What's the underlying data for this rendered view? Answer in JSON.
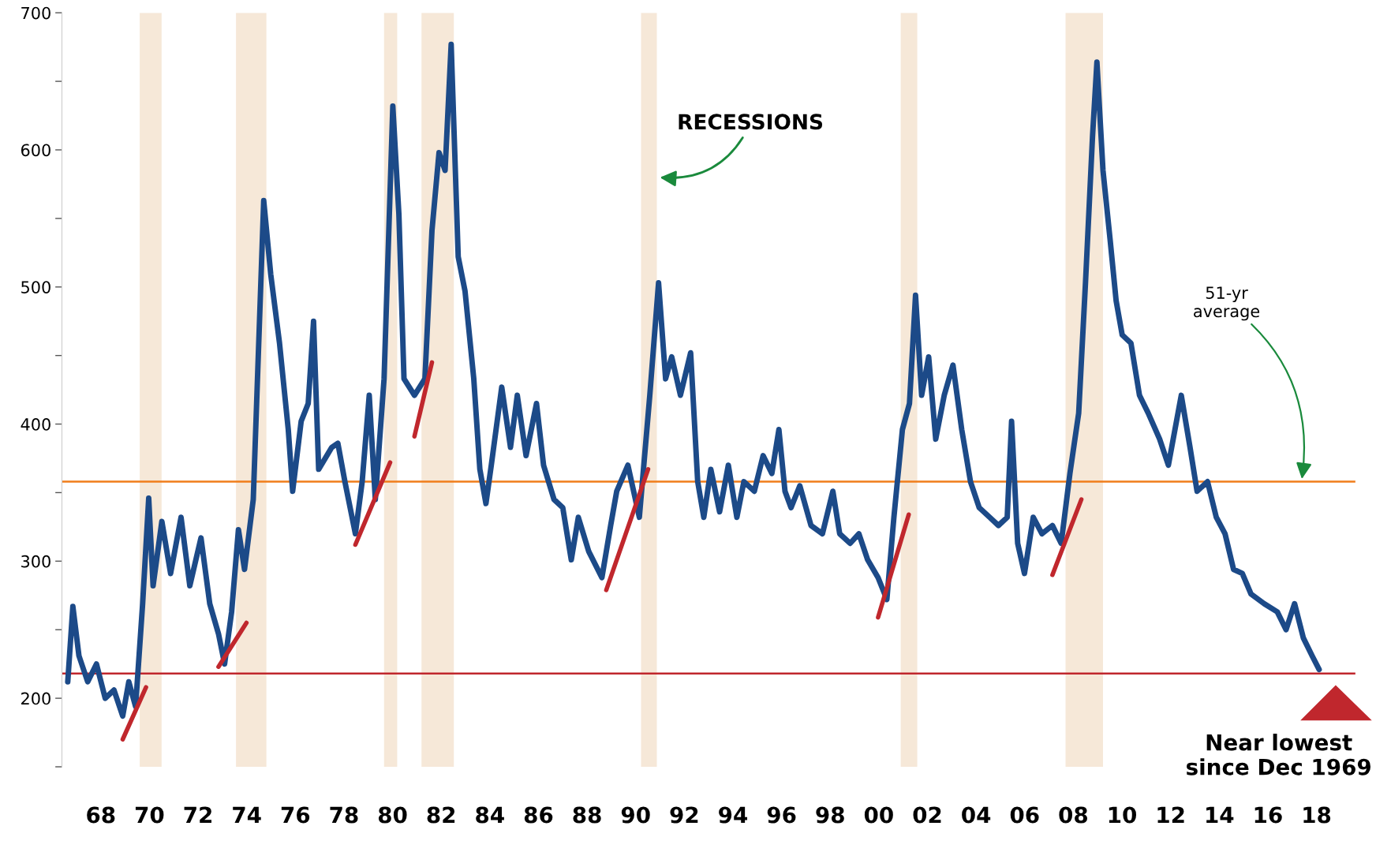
{
  "chart_data": {
    "type": "line",
    "x": [
      1966.64,
      1966.85,
      1967.1,
      1967.46,
      1967.82,
      1968.18,
      1968.54,
      1968.9,
      1969.15,
      1969.43,
      1969.72,
      1969.97,
      1970.15,
      1970.51,
      1970.87,
      1971.3,
      1971.66,
      1972.12,
      1972.48,
      1972.84,
      1973.09,
      1973.38,
      1973.66,
      1973.91,
      1974.27,
      1974.7,
      1974.99,
      1975.35,
      1975.71,
      1975.89,
      1976.24,
      1976.53,
      1976.75,
      1976.96,
      1977.5,
      1977.75,
      1978.04,
      1978.47,
      1978.75,
      1979.04,
      1979.29,
      1979.65,
      1980.01,
      1980.26,
      1980.47,
      1980.9,
      1981.33,
      1981.62,
      1981.91,
      1982.16,
      1982.41,
      1982.7,
      1982.98,
      1983.34,
      1983.59,
      1983.84,
      1984.06,
      1984.49,
      1984.85,
      1985.13,
      1985.49,
      1985.92,
      1986.21,
      1986.64,
      1987.0,
      1987.35,
      1987.64,
      1988.07,
      1988.61,
      1988.97,
      1989.22,
      1989.68,
      1990.15,
      1990.58,
      1990.94,
      1991.23,
      1991.48,
      1991.84,
      1992.26,
      1992.55,
      1992.8,
      1993.09,
      1993.45,
      1993.81,
      1994.16,
      1994.45,
      1994.88,
      1995.24,
      1995.6,
      1995.89,
      1996.14,
      1996.39,
      1996.75,
      1997.21,
      1997.68,
      1998.11,
      1998.39,
      1998.82,
      1999.18,
      1999.54,
      1999.97,
      2000.33,
      2000.62,
      2000.97,
      2001.26,
      2001.51,
      2001.76,
      2002.05,
      2002.34,
      2002.69,
      2003.05,
      2003.41,
      2003.77,
      2004.13,
      2004.56,
      2004.92,
      2005.28,
      2005.46,
      2005.71,
      2005.99,
      2006.35,
      2006.71,
      2007.14,
      2007.5,
      2007.86,
      2008.22,
      2008.5,
      2008.79,
      2008.97,
      2009.22,
      2009.51,
      2009.76,
      2010.01,
      2010.37,
      2010.72,
      2011.08,
      2011.55,
      2011.91,
      2012.44,
      2012.8,
      2013.09,
      2013.52,
      2013.88,
      2014.24,
      2014.59,
      2014.95,
      2015.31,
      2015.85,
      2016.39,
      2016.75,
      2017.1,
      2017.46,
      2017.82,
      2018.11
    ],
    "series": [
      {
        "color": "#1c4a88",
        "values": [
          212,
          267,
          231,
          212,
          225,
          200,
          206,
          187,
          212,
          194,
          269,
          346,
          282,
          329,
          291,
          332,
          282,
          317,
          269,
          247,
          225,
          263,
          323,
          294,
          345,
          563,
          509,
          459,
          396,
          351,
          402,
          415,
          475,
          367,
          383,
          386,
          358,
          320,
          358,
          421,
          345,
          433,
          632,
          553,
          433,
          421,
          433,
          541,
          598,
          585,
          677,
          522,
          497,
          433,
          367,
          342,
          370,
          427,
          383,
          421,
          377,
          415,
          370,
          345,
          339,
          301,
          332,
          307,
          288,
          326,
          351,
          370,
          332,
          421,
          503,
          433,
          449,
          421,
          452,
          358,
          332,
          367,
          336,
          370,
          332,
          358,
          351,
          377,
          364,
          396,
          351,
          339,
          355,
          326,
          320,
          351,
          320,
          313,
          320,
          301,
          288,
          272,
          332,
          396,
          415,
          494,
          421,
          449,
          389,
          421,
          443,
          396,
          358,
          339,
          332,
          326,
          332,
          402,
          313,
          291,
          332,
          320,
          326,
          313,
          364,
          408,
          503,
          610,
          664,
          585,
          535,
          490,
          465,
          459,
          421,
          408,
          389,
          370,
          421,
          383,
          351,
          358,
          332,
          320,
          294,
          291,
          276,
          269,
          263,
          250,
          269,
          244,
          231,
          221
        ]
      },
      {
        "type": "line",
        "color": "#c0272d",
        "x": [
          1968.9,
          1969.86
        ],
        "values": [
          170,
          208
        ]
      },
      {
        "type": "line",
        "color": "#c0272d",
        "x": [
          1972.84,
          1973.99
        ],
        "values": [
          223,
          255
        ]
      },
      {
        "type": "line",
        "color": "#c0272d",
        "x": [
          1978.47,
          1979.9
        ],
        "values": [
          312,
          372
        ]
      },
      {
        "type": "line",
        "color": "#c0272d",
        "x": [
          1980.9,
          1981.62
        ],
        "values": [
          391,
          445
        ]
      },
      {
        "type": "line",
        "color": "#c0272d",
        "x": [
          1988.79,
          1990.51
        ],
        "values": [
          279,
          367
        ]
      },
      {
        "type": "line",
        "color": "#c0272d",
        "x": [
          1999.97,
          2001.23
        ],
        "values": [
          259,
          334
        ]
      },
      {
        "type": "line",
        "color": "#c0272d",
        "x": [
          2007.14,
          2008.33
        ],
        "values": [
          290,
          345
        ]
      }
    ],
    "xlim": [
      1966.4,
      2019.6
    ],
    "xticks": [
      {
        "value": 1968,
        "label": "68"
      },
      {
        "value": 1970,
        "label": "70"
      },
      {
        "value": 1972,
        "label": "72"
      },
      {
        "value": 1974,
        "label": "74"
      },
      {
        "value": 1976,
        "label": "76"
      },
      {
        "value": 1978,
        "label": "78"
      },
      {
        "value": 1980,
        "label": "80"
      },
      {
        "value": 1982,
        "label": "82"
      },
      {
        "value": 1984,
        "label": "84"
      },
      {
        "value": 1986,
        "label": "86"
      },
      {
        "value": 1988,
        "label": "88"
      },
      {
        "value": 1990,
        "label": "90"
      },
      {
        "value": 1992,
        "label": "92"
      },
      {
        "value": 1994,
        "label": "94"
      },
      {
        "value": 1996,
        "label": "96"
      },
      {
        "value": 1998,
        "label": "98"
      },
      {
        "value": 2000,
        "label": "00"
      },
      {
        "value": 2002,
        "label": "02"
      },
      {
        "value": 2004,
        "label": "04"
      },
      {
        "value": 2006,
        "label": "06"
      },
      {
        "value": 2008,
        "label": "08"
      },
      {
        "value": 2010,
        "label": "10"
      },
      {
        "value": 2012,
        "label": "12"
      },
      {
        "value": 2014,
        "label": "14"
      },
      {
        "value": 2016,
        "label": "16"
      },
      {
        "value": 2018,
        "label": "18"
      }
    ],
    "ylim": [
      150,
      700
    ],
    "yticks": [
      {
        "value": 150,
        "label": null
      },
      200,
      {
        "value": 250,
        "label": null
      },
      300,
      {
        "value": 350,
        "label": null
      },
      400,
      {
        "value": 450,
        "label": null
      },
      500,
      {
        "value": 550,
        "label": null
      },
      600,
      {
        "value": 650,
        "label": null
      },
      700
    ],
    "grid": false,
    "legend": false,
    "line_style": "solid",
    "marker": "none",
    "ref_lines": [
      {
        "axis": "y",
        "value": 358,
        "color": "#f07d1a",
        "line_style": "solid"
      },
      {
        "axis": "y",
        "value": 218,
        "color": "#c0272d",
        "line_style": "solid"
      }
    ],
    "bands": [
      {
        "axis": "x",
        "from": 1969.6,
        "to": 1970.5,
        "color": "#f6e8d8"
      },
      {
        "axis": "x",
        "from": 1973.56,
        "to": 1974.81,
        "color": "#f6e8d8"
      },
      {
        "axis": "x",
        "from": 1979.65,
        "to": 1980.19,
        "color": "#f6e8d8"
      },
      {
        "axis": "x",
        "from": 1981.19,
        "to": 1982.52,
        "color": "#f6e8d8"
      },
      {
        "axis": "x",
        "from": 1990.22,
        "to": 1990.87,
        "color": "#f6e8d8"
      },
      {
        "axis": "x",
        "from": 2000.9,
        "to": 2001.58,
        "color": "#f6e8d8"
      },
      {
        "axis": "x",
        "from": 2007.68,
        "to": 2009.22,
        "color": "#f6e8d8"
      }
    ],
    "annotations": [
      {
        "text": "RECESSIONS",
        "x": 1990.9,
        "y": 580
      },
      {
        "text": "51-yr\naverage",
        "x": 2017.4,
        "y": 360
      },
      "Near lowest\nsince Dec 1969"
    ]
  }
}
